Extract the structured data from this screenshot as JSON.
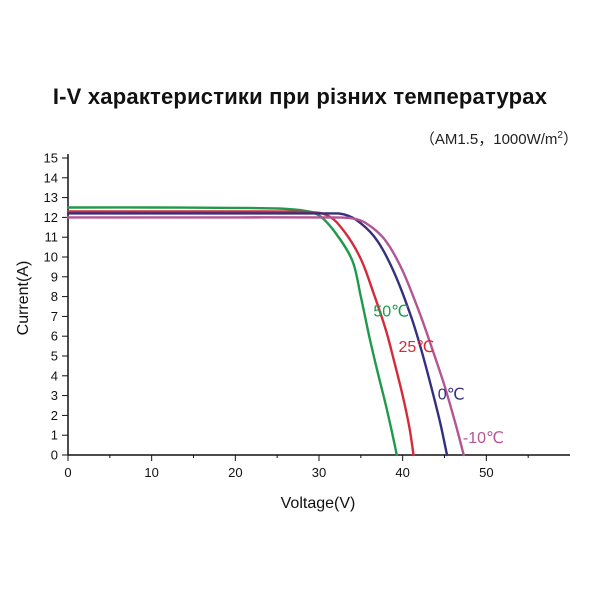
{
  "chart_data": {
    "type": "line",
    "title": "I-V характеристики при різних температурах",
    "subtitle_prefix": "（AM1.5，1000W/m",
    "subtitle_sup": "2",
    "subtitle_suffix": "）",
    "xlabel": "Voltage(V)",
    "ylabel": "Current(A)",
    "xlim": [
      0,
      60
    ],
    "ylim": [
      0,
      15
    ],
    "xticks": [
      0,
      10,
      20,
      30,
      40,
      50
    ],
    "yticks": [
      0,
      1,
      2,
      3,
      4,
      5,
      6,
      7,
      8,
      9,
      10,
      11,
      12,
      13,
      14,
      15
    ],
    "grid": false,
    "series": [
      {
        "name": "50℃",
        "color": "#1e9a4a",
        "points": [
          [
            0,
            12.5
          ],
          [
            10,
            12.5
          ],
          [
            20,
            12.48
          ],
          [
            25,
            12.45
          ],
          [
            28,
            12.35
          ],
          [
            30,
            12.1
          ],
          [
            32,
            11.2
          ],
          [
            34,
            9.8
          ],
          [
            35,
            8.0
          ],
          [
            36,
            6.0
          ],
          [
            37,
            4.2
          ],
          [
            38,
            2.5
          ],
          [
            38.8,
            1.0
          ],
          [
            39.3,
            0
          ]
        ]
      },
      {
        "name": "25℃",
        "color": "#d42a3a",
        "points": [
          [
            0,
            12.3
          ],
          [
            10,
            12.3
          ],
          [
            20,
            12.3
          ],
          [
            28,
            12.28
          ],
          [
            31,
            12.1
          ],
          [
            33,
            11.3
          ],
          [
            35,
            9.9
          ],
          [
            36.5,
            8.2
          ],
          [
            38,
            6.3
          ],
          [
            39,
            4.7
          ],
          [
            40,
            3.0
          ],
          [
            40.8,
            1.4
          ],
          [
            41.3,
            0
          ]
        ]
      },
      {
        "name": "0℃",
        "color": "#34307f",
        "points": [
          [
            0,
            12.2
          ],
          [
            10,
            12.2
          ],
          [
            20,
            12.2
          ],
          [
            30,
            12.2
          ],
          [
            33,
            12.15
          ],
          [
            35,
            11.7
          ],
          [
            37,
            10.8
          ],
          [
            39,
            9.2
          ],
          [
            41,
            7.0
          ],
          [
            42.3,
            5.2
          ],
          [
            43.5,
            3.3
          ],
          [
            44.5,
            1.6
          ],
          [
            45.3,
            0
          ]
        ]
      },
      {
        "name": "-10℃",
        "color": "#b35493",
        "points": [
          [
            0,
            12.0
          ],
          [
            10,
            12.0
          ],
          [
            20,
            12.0
          ],
          [
            30,
            12.0
          ],
          [
            34,
            11.95
          ],
          [
            36,
            11.6
          ],
          [
            38,
            10.8
          ],
          [
            40,
            9.3
          ],
          [
            42,
            7.2
          ],
          [
            43.5,
            5.4
          ],
          [
            45,
            3.5
          ],
          [
            46.3,
            1.6
          ],
          [
            47.3,
            0
          ]
        ]
      }
    ],
    "series_label_positions": [
      {
        "x": 36.5,
        "y": 7.0
      },
      {
        "x": 39.5,
        "y": 5.2
      },
      {
        "x": 44.2,
        "y": 2.8
      },
      {
        "x": 47.2,
        "y": 0.6
      }
    ]
  }
}
